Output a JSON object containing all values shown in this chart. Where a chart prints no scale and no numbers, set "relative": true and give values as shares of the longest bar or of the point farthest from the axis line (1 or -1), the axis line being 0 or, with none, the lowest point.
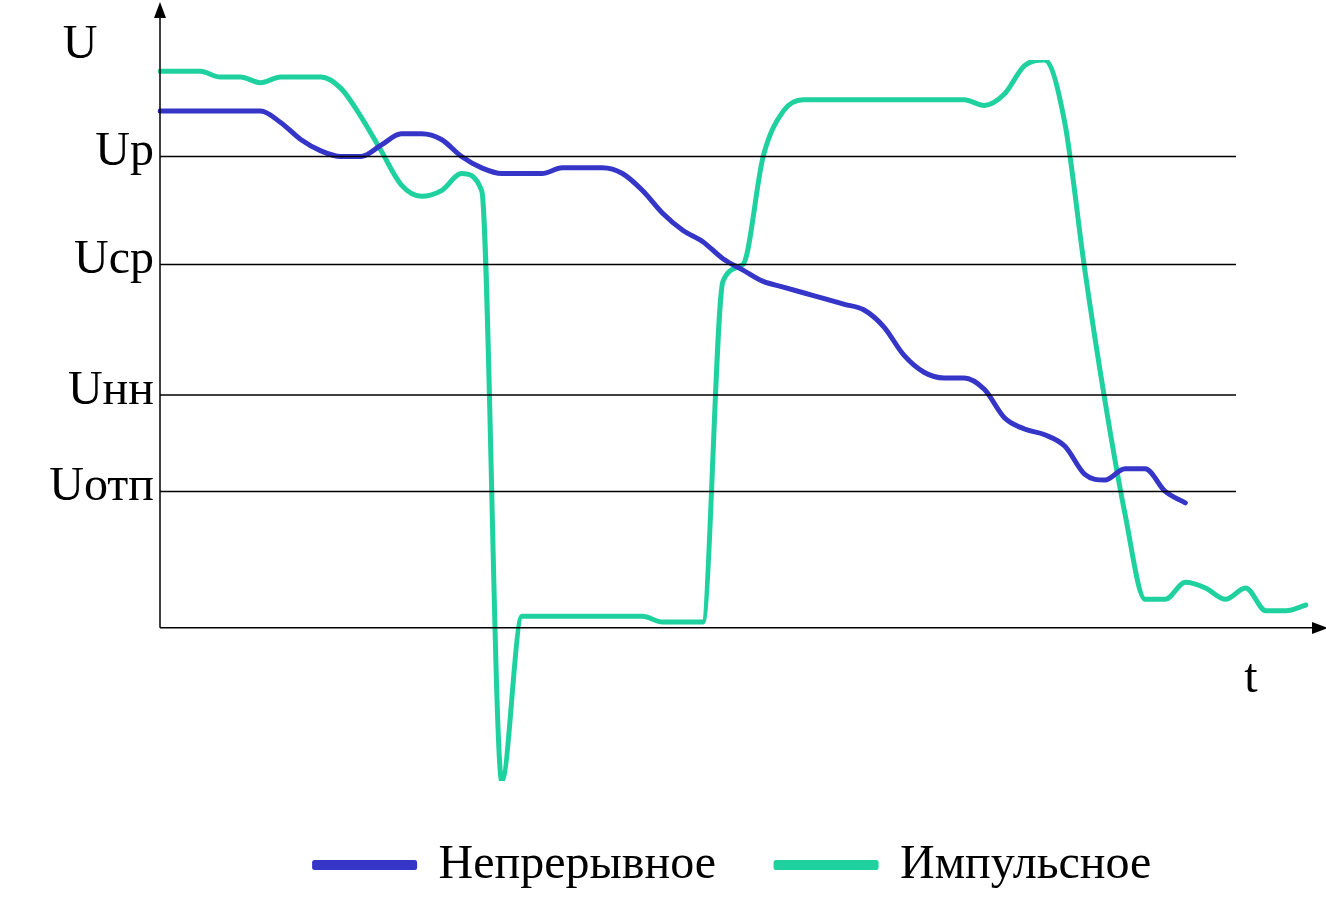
{
  "chart_data": {
    "type": "line",
    "relative": true,
    "ylabel": "U",
    "xlabel": "t",
    "legend": "bottom",
    "marker": "none",
    "line_style": "solid",
    "categories": [
      null,
      null,
      null,
      null,
      null,
      null,
      null,
      null,
      null,
      null,
      null,
      null,
      null,
      null,
      null,
      null,
      null,
      null,
      null,
      null,
      null,
      null,
      null,
      null,
      null,
      null,
      null,
      null,
      null,
      null,
      null,
      null,
      null,
      null,
      null,
      null,
      null,
      null,
      null,
      null,
      null,
      null,
      null,
      null,
      null,
      null,
      null,
      null,
      null,
      null,
      null,
      null,
      null,
      null,
      null,
      null,
      null,
      null
    ],
    "ref_lines": [
      {
        "axis": "y",
        "value": 0.83,
        "label": "Uр",
        "color": "#000000"
      },
      {
        "axis": "y",
        "value": 0.64,
        "label": "Uср",
        "color": "#000000"
      },
      {
        "axis": "y",
        "value": 0.41,
        "label": "Uнн",
        "color": "#000000"
      },
      {
        "axis": "y",
        "value": 0.24,
        "label": "Uотп",
        "color": "#000000"
      }
    ],
    "series": [
      {
        "name": "Непрерывное",
        "color": "#3535c8",
        "values": [
          0.91,
          0.91,
          0.91,
          0.91,
          0.91,
          0.91,
          0.89,
          0.86,
          0.84,
          0.83,
          0.83,
          0.85,
          0.87,
          0.87,
          0.86,
          0.83,
          0.81,
          0.8,
          0.8,
          0.8,
          0.81,
          0.81,
          0.81,
          0.8,
          0.77,
          0.73,
          0.7,
          0.68,
          0.65,
          0.63,
          0.61,
          0.6,
          0.59,
          0.58,
          0.57,
          0.56,
          0.53,
          0.48,
          0.45,
          0.44,
          0.44,
          0.42,
          0.37,
          0.35,
          0.34,
          0.32,
          0.27,
          0.26,
          0.28,
          0.28,
          0.24,
          0.22,
          null,
          null,
          null,
          null,
          null,
          null
        ]
      },
      {
        "name": "Импульсное",
        "color": "#1fd19f",
        "values": [
          0.98,
          0.98,
          0.98,
          0.97,
          0.97,
          0.96,
          0.97,
          0.97,
          0.97,
          0.95,
          0.9,
          0.84,
          0.78,
          0.76,
          0.77,
          0.8,
          0.77,
          -0.27,
          0.02,
          0.02,
          0.02,
          0.02,
          0.02,
          0.02,
          0.02,
          0.01,
          0.01,
          0.01,
          0.61,
          0.64,
          0.83,
          0.91,
          0.93,
          0.93,
          0.93,
          0.93,
          0.93,
          0.93,
          0.93,
          0.93,
          0.93,
          0.92,
          0.94,
          0.99,
          1.0,
          0.89,
          0.63,
          0.4,
          0.2,
          0.05,
          0.05,
          0.08,
          0.07,
          0.05,
          0.07,
          0.03,
          0.03,
          0.04
        ]
      }
    ]
  }
}
